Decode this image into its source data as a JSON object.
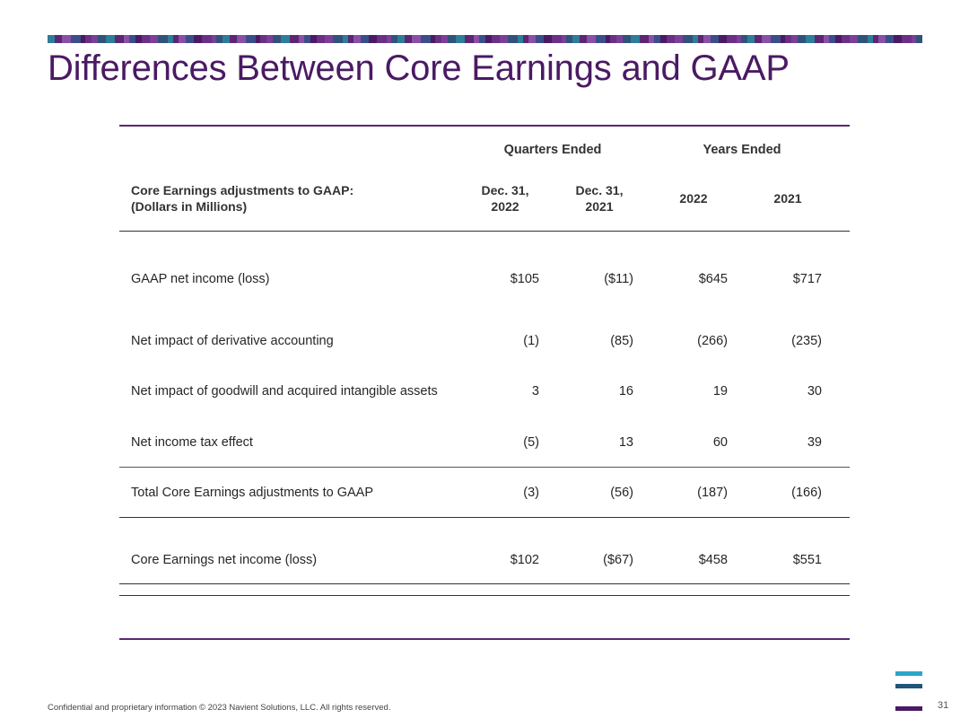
{
  "slide": {
    "title": "Differences Between Core Earnings and GAAP",
    "page_number": "31",
    "footer": "Confidential and proprietary information  © 2023 Navient Solutions, LLC. All rights reserved.",
    "colors": {
      "title": "#4a1a64",
      "rule": "#5c2672",
      "mosaic": [
        "#4a1a64",
        "#6b2f86",
        "#8a4fa8",
        "#3a4f8a",
        "#2e7d9a",
        "#5c2672",
        "#7b3f99",
        "#31537a"
      ]
    },
    "logo": {
      "icon": "navient-bars-logo",
      "colors": [
        "#2aa6c9",
        "#1f5577",
        "#4a1a64"
      ]
    }
  },
  "table": {
    "header": {
      "label_line1": "Core Earnings adjustments to GAAP:",
      "label_line2": "(Dollars in Millions)",
      "group_quarters": "Quarters Ended",
      "group_years": "Years Ended",
      "columns": [
        {
          "line1": "Dec. 31,",
          "line2": "2022"
        },
        {
          "line1": "Dec. 31,",
          "line2": "2021"
        },
        {
          "line1": "2022",
          "line2": ""
        },
        {
          "line1": "2021",
          "line2": ""
        }
      ]
    },
    "rows": [
      {
        "label": "GAAP net income (loss)",
        "values": [
          "$105",
          "($11)",
          "$645",
          "$717"
        ]
      },
      {
        "label": "Net impact of derivative accounting",
        "values": [
          "(1)",
          "(85)",
          "(266)",
          "(235)"
        ]
      },
      {
        "label": "Net impact of goodwill and acquired intangible assets",
        "values": [
          "3",
          "16",
          "19",
          "30"
        ]
      },
      {
        "label": "Net income tax effect",
        "values": [
          "(5)",
          "13",
          "60",
          "39"
        ]
      },
      {
        "label": "Total Core Earnings adjustments to GAAP",
        "values": [
          "(3)",
          "(56)",
          "(187)",
          "(166)"
        ]
      },
      {
        "label": "Core Earnings net income (loss)",
        "values": [
          "$102",
          "($67)",
          "$458",
          "$551"
        ]
      }
    ]
  }
}
